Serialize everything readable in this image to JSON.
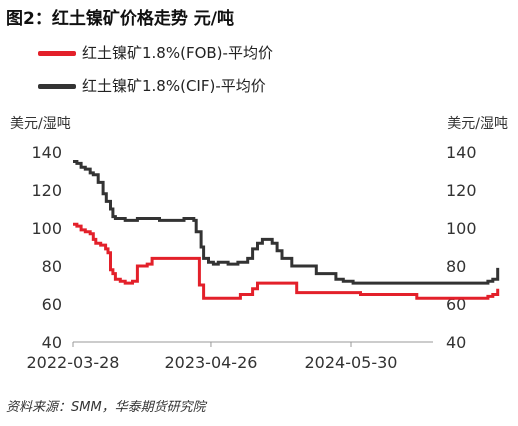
{
  "title": "图2：红土镍矿价格走势  元/吨",
  "source": "资料来源：SMM，华泰期货研究院",
  "colors": {
    "fob": "#e3202a",
    "cif": "#333333"
  },
  "chart_data": {
    "type": "line",
    "left_unit": "美元/湿吨",
    "right_unit": "美元/湿吨",
    "ylim": [
      40,
      140
    ],
    "yticks": [
      40,
      60,
      80,
      100,
      120,
      140
    ],
    "xticks": [
      "2022-03-28",
      "2023-04-26",
      "2024-05-30"
    ],
    "grid": false,
    "legend_position": "top-left",
    "series": [
      {
        "name": "红土镍矿1.8%(FOB)-平均价",
        "color": "#e3202a",
        "points": [
          [
            "2022-03-28",
            102
          ],
          [
            "2022-04-08",
            101
          ],
          [
            "2022-04-20",
            99
          ],
          [
            "2022-05-02",
            98
          ],
          [
            "2022-05-16",
            97
          ],
          [
            "2022-05-25",
            94
          ],
          [
            "2022-06-01",
            92
          ],
          [
            "2022-06-15",
            91
          ],
          [
            "2022-06-29",
            89
          ],
          [
            "2022-07-06",
            87
          ],
          [
            "2022-07-13",
            78
          ],
          [
            "2022-07-20",
            76
          ],
          [
            "2022-07-27",
            73
          ],
          [
            "2022-08-10",
            72
          ],
          [
            "2022-08-24",
            71
          ],
          [
            "2022-09-07",
            71
          ],
          [
            "2022-09-14",
            72
          ],
          [
            "2022-09-28",
            80
          ],
          [
            "2022-10-12",
            80
          ],
          [
            "2022-10-26",
            81
          ],
          [
            "2022-11-09",
            84
          ],
          [
            "2023-01-04",
            84
          ],
          [
            "2023-03-01",
            84
          ],
          [
            "2023-03-15",
            84
          ],
          [
            "2023-03-24",
            70
          ],
          [
            "2023-04-05",
            63
          ],
          [
            "2023-06-01",
            63
          ],
          [
            "2023-07-05",
            63
          ],
          [
            "2023-07-19",
            65
          ],
          [
            "2023-08-02",
            65
          ],
          [
            "2023-08-23",
            68
          ],
          [
            "2023-09-06",
            71
          ],
          [
            "2023-11-01",
            71
          ],
          [
            "2023-12-13",
            71
          ],
          [
            "2023-12-27",
            66
          ],
          [
            "2024-03-06",
            66
          ],
          [
            "2024-06-05",
            66
          ],
          [
            "2024-06-26",
            65
          ],
          [
            "2024-11-20",
            65
          ],
          [
            "2024-12-04",
            63
          ],
          [
            "2025-05-14",
            63
          ],
          [
            "2025-06-11",
            63
          ],
          [
            "2025-06-25",
            64
          ],
          [
            "2025-07-09",
            65
          ],
          [
            "2025-07-23",
            68
          ]
        ]
      },
      {
        "name": "红土镍矿1.8%(CIF)-平均价",
        "color": "#333333",
        "points": [
          [
            "2022-03-28",
            135
          ],
          [
            "2022-04-08",
            134
          ],
          [
            "2022-04-20",
            132
          ],
          [
            "2022-05-02",
            131
          ],
          [
            "2022-05-16",
            129
          ],
          [
            "2022-05-25",
            128
          ],
          [
            "2022-06-08",
            124
          ],
          [
            "2022-06-22",
            118
          ],
          [
            "2022-07-01",
            114
          ],
          [
            "2022-07-13",
            110
          ],
          [
            "2022-07-20",
            106
          ],
          [
            "2022-07-27",
            105
          ],
          [
            "2022-08-24",
            104
          ],
          [
            "2022-09-14",
            104
          ],
          [
            "2022-09-28",
            105
          ],
          [
            "2022-10-26",
            105
          ],
          [
            "2022-11-30",
            104
          ],
          [
            "2022-12-28",
            104
          ],
          [
            "2023-02-08",
            105
          ],
          [
            "2023-03-08",
            104
          ],
          [
            "2023-03-15",
            98
          ],
          [
            "2023-03-29",
            90
          ],
          [
            "2023-04-05",
            84
          ],
          [
            "2023-04-19",
            82
          ],
          [
            "2023-05-03",
            81
          ],
          [
            "2023-05-17",
            82
          ],
          [
            "2023-06-14",
            81
          ],
          [
            "2023-07-12",
            82
          ],
          [
            "2023-08-02",
            82
          ],
          [
            "2023-08-09",
            84
          ],
          [
            "2023-08-23",
            89
          ],
          [
            "2023-09-06",
            92
          ],
          [
            "2023-09-20",
            94
          ],
          [
            "2023-10-04",
            94
          ],
          [
            "2023-10-18",
            92
          ],
          [
            "2023-11-01",
            88
          ],
          [
            "2023-11-15",
            84
          ],
          [
            "2023-11-29",
            84
          ],
          [
            "2023-12-13",
            80
          ],
          [
            "2024-01-10",
            80
          ],
          [
            "2024-02-07",
            80
          ],
          [
            "2024-02-21",
            76
          ],
          [
            "2024-03-27",
            76
          ],
          [
            "2024-04-17",
            73
          ],
          [
            "2024-05-08",
            72
          ],
          [
            "2024-06-05",
            71
          ],
          [
            "2025-04-09",
            71
          ],
          [
            "2025-05-21",
            71
          ],
          [
            "2025-06-25",
            72
          ],
          [
            "2025-07-09",
            73
          ],
          [
            "2025-07-23",
            79
          ]
        ]
      }
    ]
  }
}
